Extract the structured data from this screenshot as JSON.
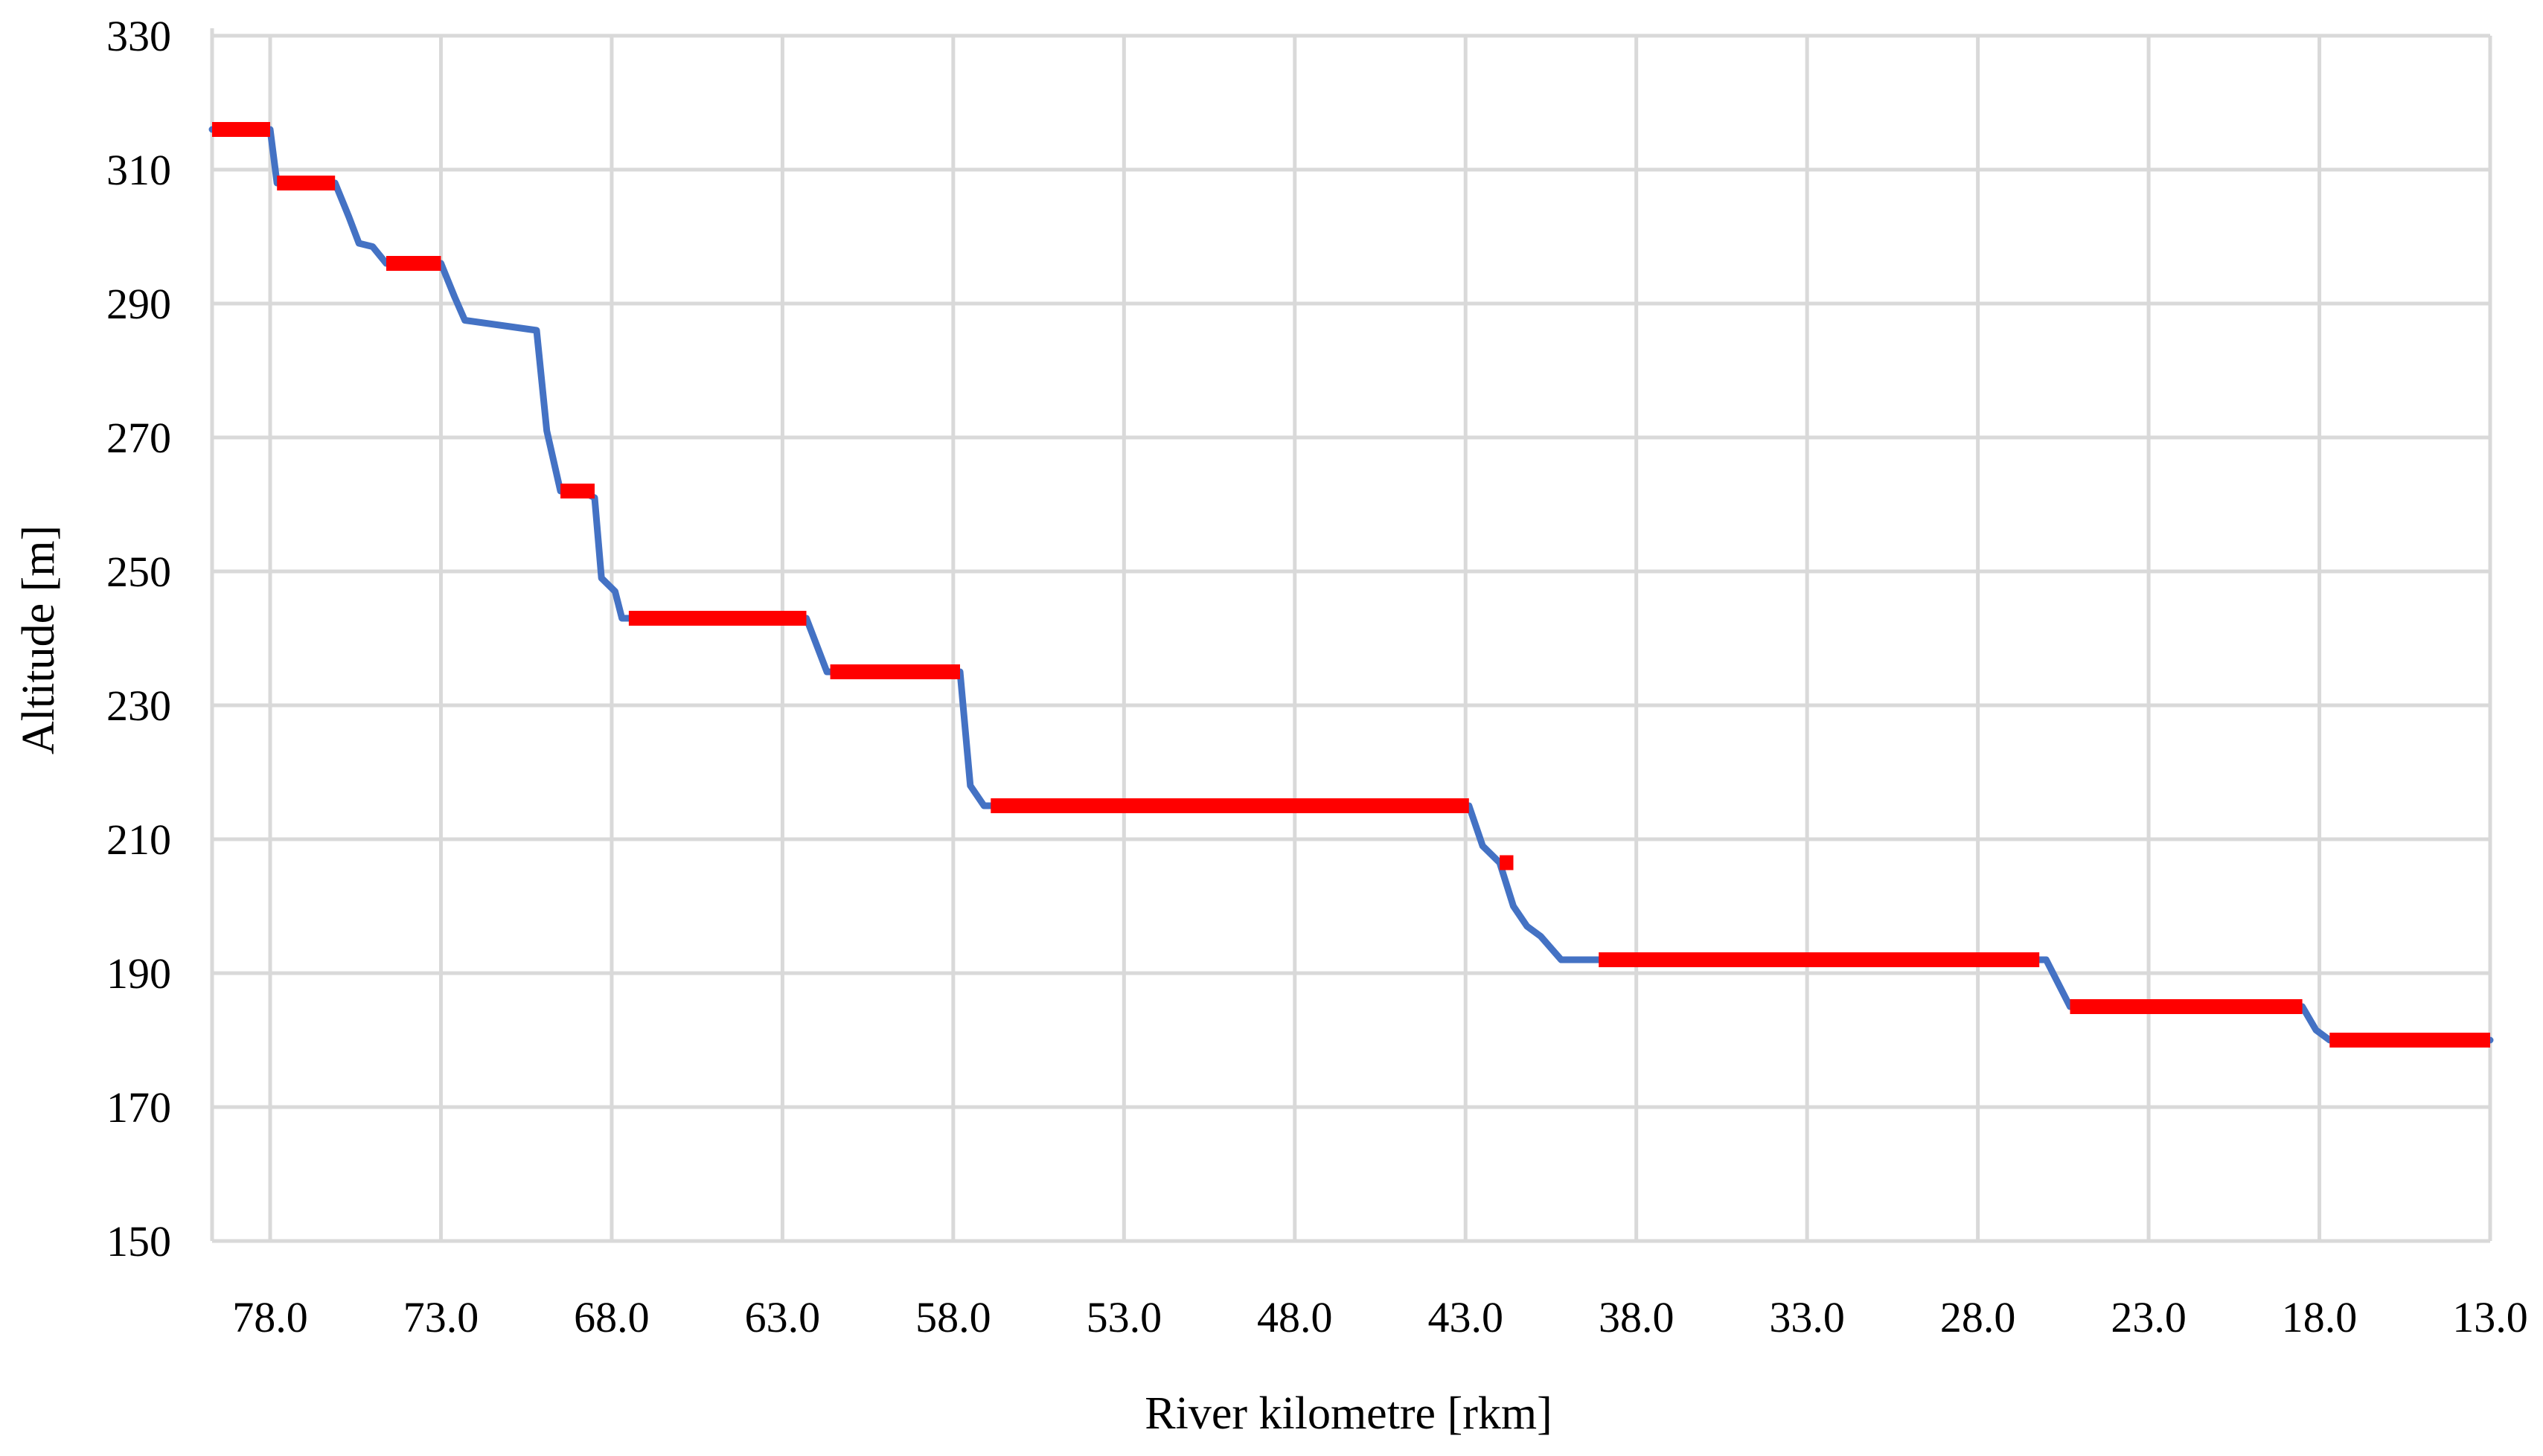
{
  "chart_data": {
    "type": "line",
    "title": "",
    "xlabel": "River kilometre [rkm]",
    "ylabel": "Altitude [m]",
    "x_reversed": true,
    "xlim": [
      79.7,
      13.0
    ],
    "ylim": [
      150,
      330
    ],
    "x_ticks": [
      78.0,
      73.0,
      68.0,
      63.0,
      58.0,
      53.0,
      48.0,
      43.0,
      38.0,
      33.0,
      28.0,
      23.0,
      18.0,
      13.0
    ],
    "x_tick_labels": [
      "78.0",
      "73.0",
      "68.0",
      "63.0",
      "58.0",
      "53.0",
      "48.0",
      "43.0",
      "38.0",
      "33.0",
      "28.0",
      "23.0",
      "18.0",
      "13.0"
    ],
    "y_ticks": [
      150,
      170,
      190,
      210,
      230,
      250,
      270,
      290,
      310,
      330
    ],
    "y_tick_labels": [
      "150",
      "170",
      "190",
      "210",
      "230",
      "250",
      "270",
      "290",
      "310",
      "330"
    ],
    "grid": true,
    "colors": {
      "profile": "#4472C4",
      "reservoir": "#FF0000",
      "grid": "#D9D9D9"
    },
    "series": [
      {
        "kind": "profile",
        "x": [
          79.7,
          78.0,
          77.8,
          76.1,
          75.7,
          75.4,
          75.0,
          74.6,
          74.3,
          73.0,
          72.6,
          72.3,
          70.2,
          69.9,
          69.5,
          68.9,
          68.5,
          68.3,
          67.9,
          67.7,
          62.3,
          61.7,
          57.8,
          57.5,
          57.1,
          42.9,
          42.5,
          42.0,
          41.6,
          41.2,
          40.8,
          40.2,
          39.5,
          38.9,
          26.0,
          25.3,
          18.5,
          18.1,
          17.7,
          13.0
        ],
        "y": [
          316,
          316,
          308,
          308,
          303,
          299,
          298.5,
          296,
          296,
          296,
          291,
          287.5,
          286,
          271,
          262,
          262,
          261,
          249,
          247,
          243,
          243,
          235,
          235,
          218,
          215,
          215,
          209,
          206.5,
          200,
          197,
          195.5,
          192,
          192,
          192,
          192,
          185,
          185,
          181.5,
          180,
          180
        ]
      },
      {
        "kind": "reservoir",
        "x": [
          79.7,
          78.0
        ],
        "y": [
          316,
          316
        ]
      },
      {
        "kind": "reservoir",
        "x": [
          77.8,
          76.1
        ],
        "y": [
          308,
          308
        ]
      },
      {
        "kind": "reservoir",
        "x": [
          74.6,
          73.0
        ],
        "y": [
          296,
          296
        ]
      },
      {
        "kind": "reservoir",
        "x": [
          69.5,
          68.5
        ],
        "y": [
          262,
          262
        ]
      },
      {
        "kind": "reservoir",
        "x": [
          67.5,
          62.3
        ],
        "y": [
          243,
          243
        ]
      },
      {
        "kind": "reservoir",
        "x": [
          61.6,
          57.8
        ],
        "y": [
          235,
          235
        ]
      },
      {
        "kind": "reservoir",
        "x": [
          56.9,
          42.9
        ],
        "y": [
          215,
          215
        ]
      },
      {
        "kind": "reservoir",
        "x": [
          42.0,
          41.6
        ],
        "y": [
          206.5,
          206.5
        ]
      },
      {
        "kind": "reservoir",
        "x": [
          39.1,
          26.2
        ],
        "y": [
          192,
          192
        ]
      },
      {
        "kind": "reservoir",
        "x": [
          25.3,
          18.5
        ],
        "y": [
          185,
          185
        ]
      },
      {
        "kind": "reservoir",
        "x": [
          17.7,
          13.0
        ],
        "y": [
          180,
          180
        ]
      }
    ]
  }
}
